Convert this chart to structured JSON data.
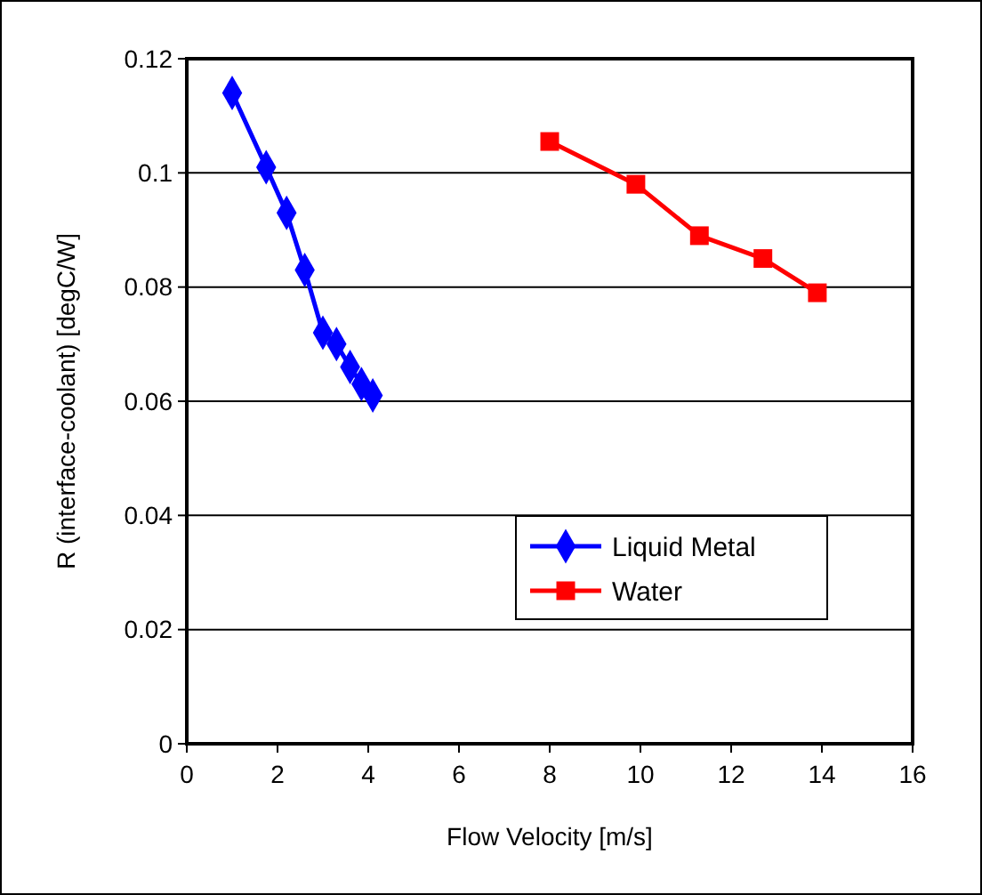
{
  "chart_data": {
    "type": "line",
    "xlabel": "Flow Velocity [m/s]",
    "ylabel": "R (interface-coolant) [degC/W]",
    "xlim": [
      0,
      16
    ],
    "xticks": [
      0,
      2,
      4,
      6,
      8,
      10,
      12,
      14,
      16
    ],
    "ylim": [
      0,
      0.12
    ],
    "yticks": [
      0,
      0.02,
      0.04,
      0.06,
      0.08,
      0.1,
      0.12
    ],
    "grid": "y",
    "legend": "right",
    "series": [
      {
        "name": "Liquid Metal",
        "color": "#0000ff",
        "marker": "diamond",
        "x": [
          1.0,
          1.75,
          2.2,
          2.6,
          3.0,
          3.3,
          3.6,
          3.85,
          4.1
        ],
        "values": [
          0.114,
          0.101,
          0.093,
          0.083,
          0.072,
          0.07,
          0.066,
          0.063,
          0.061
        ]
      },
      {
        "name": "Water",
        "color": "#ff0000",
        "marker": "square",
        "x": [
          8,
          9.9,
          11.3,
          12.7,
          13.9
        ],
        "values": [
          0.1055,
          0.098,
          0.089,
          0.085,
          0.079
        ]
      }
    ]
  }
}
